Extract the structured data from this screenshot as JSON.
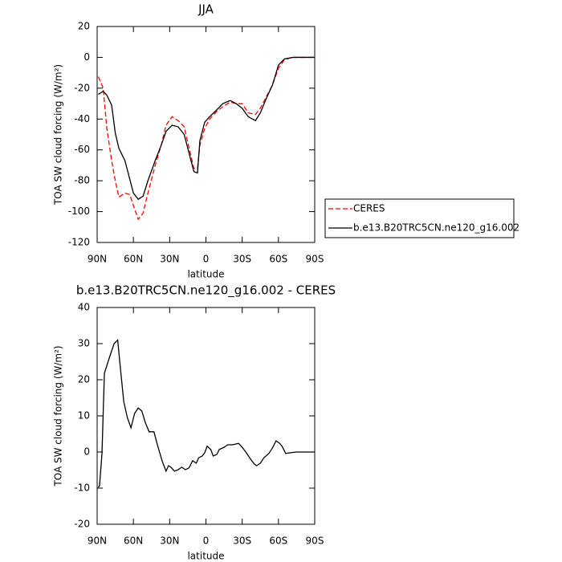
{
  "chart_data": [
    {
      "type": "line",
      "title": "JJA",
      "xlabel": "latitude",
      "ylabel": "TOA SW cloud forcing (W/m²)",
      "x": [
        89,
        85,
        82,
        78,
        75,
        72,
        67,
        63,
        60,
        56,
        52,
        48,
        42,
        37,
        33,
        28,
        23,
        18,
        13,
        10,
        7,
        5,
        1,
        -3,
        -9,
        -14,
        -20,
        -25,
        -30,
        -35,
        -41,
        -45,
        -50,
        -55,
        -60,
        -65,
        -72,
        -90
      ],
      "series": [
        {
          "name": "CERES",
          "color": "#ff0000",
          "dash": "dashed",
          "values": [
            -12.5,
            -20,
            -46,
            -67,
            -80,
            -90.6,
            -88,
            -89,
            -96,
            -105,
            -101,
            -88,
            -70,
            -57,
            -44,
            -38.5,
            -41,
            -45,
            -62,
            -72,
            -72,
            -57,
            -46,
            -40,
            -35,
            -32,
            -29,
            -30,
            -30,
            -36,
            -37,
            -33,
            -25.5,
            -18,
            -7,
            -1.5,
            0,
            0
          ]
        },
        {
          "name": "b.e13.B20TRC5CN.ne120_g16.002",
          "color": "#000000",
          "dash": "solid",
          "values": [
            -24,
            -22,
            -24.5,
            -31,
            -49,
            -59,
            -67,
            -79,
            -88,
            -92,
            -90,
            -80,
            -67,
            -57,
            -48,
            -44,
            -45,
            -50,
            -65,
            -74,
            -75,
            -54,
            -42,
            -38.5,
            -34,
            -30,
            -28,
            -30,
            -33,
            -38.5,
            -41,
            -36,
            -26.5,
            -18,
            -5,
            -1,
            0,
            0
          ]
        }
      ],
      "xlim": [
        90,
        -90
      ],
      "xticks": [
        {
          "value": 90,
          "label": "90N"
        },
        {
          "value": 60,
          "label": "60N"
        },
        {
          "value": 30,
          "label": "30N"
        },
        0,
        {
          "value": -30,
          "label": "30S"
        },
        {
          "value": -60,
          "label": "60S"
        },
        {
          "value": -90,
          "label": "90S"
        }
      ],
      "ylim": [
        -120,
        20
      ],
      "yticks": [
        20,
        0,
        -20,
        -40,
        -60,
        -80,
        -100,
        -120
      ],
      "legend": "right"
    },
    {
      "type": "line",
      "title": "b.e13.B20TRC5CN.ne120_g16.002 - CERES",
      "xlabel": "latitude",
      "ylabel": "TOA SW cloud forcing (W/m²)",
      "x": [
        89,
        88,
        86,
        84,
        80,
        76,
        73,
        71,
        68,
        65,
        62,
        59,
        56,
        53,
        50,
        47,
        43,
        40,
        36,
        33,
        31,
        29,
        26,
        23,
        20,
        17,
        14,
        11,
        8,
        6,
        3,
        1,
        -1,
        -4,
        -6,
        -9,
        -11,
        -15,
        -18,
        -22,
        -27,
        -30,
        -33,
        -37,
        -40,
        -42,
        -45,
        -48,
        -52,
        -55,
        -58,
        -61,
        -63,
        -66,
        -70,
        -75,
        -90
      ],
      "values": [
        -9.8,
        -9.3,
        -0.4,
        21.8,
        26,
        30,
        31,
        24,
        14,
        9.5,
        6.7,
        10.7,
        12.2,
        11.3,
        8,
        5.6,
        5.6,
        1.8,
        -2.7,
        -5.3,
        -3.8,
        -4.2,
        -5.3,
        -4.9,
        -4.2,
        -4.9,
        -4.4,
        -2.4,
        -3.1,
        -1.6,
        -1.1,
        -0.2,
        1.6,
        0.7,
        -1.1,
        -0.7,
        0.7,
        1.3,
        2,
        2,
        2.4,
        1.3,
        0,
        -2,
        -3.3,
        -3.8,
        -3.1,
        -1.6,
        -0.4,
        1.1,
        3.1,
        2.4,
        1.6,
        -0.4,
        -0.2,
        0,
        0
      ],
      "color": "#000000",
      "xlim": [
        90,
        -90
      ],
      "xticks": [
        {
          "value": 90,
          "label": "90N"
        },
        {
          "value": 60,
          "label": "60N"
        },
        {
          "value": 30,
          "label": "30N"
        },
        0,
        {
          "value": -30,
          "label": "30S"
        },
        {
          "value": -60,
          "label": "60S"
        },
        {
          "value": -90,
          "label": "90S"
        }
      ],
      "ylim": [
        -20,
        40
      ],
      "yticks": [
        40,
        30,
        20,
        10,
        0,
        -10,
        -20
      ]
    }
  ]
}
